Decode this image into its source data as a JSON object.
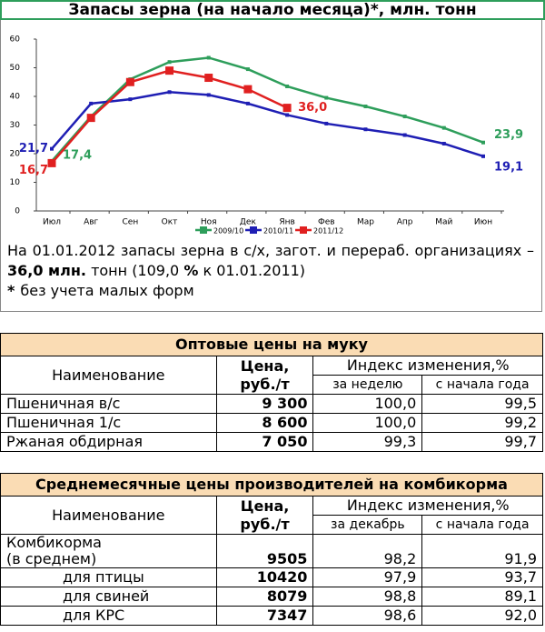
{
  "chart_data": {
    "type": "line",
    "title": "Запасы зерна (на начало месяца)*, млн. тонн",
    "categories": [
      "Июл",
      "Авг",
      "Сен",
      "Окт",
      "Ноя",
      "Дек",
      "Янв",
      "Фев",
      "Мар",
      "Апр",
      "Май",
      "Июн"
    ],
    "ylim": [
      0,
      60
    ],
    "yticks": [
      0,
      10,
      20,
      30,
      40,
      50,
      60
    ],
    "series": [
      {
        "name": "2009/10",
        "color": "#2e9e5b",
        "values": [
          17.4,
          33,
          46,
          52,
          53.5,
          49.5,
          43.5,
          39.5,
          36.5,
          33,
          29,
          23.9
        ],
        "value_labels": [
          "17,4",
          null,
          null,
          null,
          null,
          null,
          null,
          null,
          null,
          null,
          null,
          "23,9"
        ]
      },
      {
        "name": "2010/11",
        "color": "#1f1fb4",
        "values": [
          21.7,
          37.5,
          39,
          41.5,
          40.5,
          37.5,
          33.5,
          30.5,
          28.5,
          26.5,
          23.5,
          19.1
        ],
        "value_labels": [
          "21,7",
          null,
          null,
          null,
          null,
          null,
          null,
          null,
          null,
          null,
          null,
          "19,1"
        ]
      },
      {
        "name": "2011/12",
        "color": "#e02020",
        "values": [
          16.7,
          32.5,
          45,
          49,
          46.5,
          42.5,
          36.0,
          null,
          null,
          null,
          null,
          null
        ],
        "value_labels": [
          "16,7",
          null,
          null,
          null,
          null,
          null,
          "36,0",
          null,
          null,
          null,
          null,
          null
        ]
      }
    ]
  },
  "note": {
    "parts": [
      {
        "text": "На 01.01.2012 запасы зерна в с/х, загот. и перераб. организациях – ",
        "bold": false
      },
      {
        "text": "36,0 млн.",
        "bold": true
      },
      {
        "text": " тонн (109,0 ",
        "bold": false
      },
      {
        "text": "%",
        "bold": true
      },
      {
        "text": " к 01.01.2011)",
        "bold": false
      }
    ],
    "star": "*",
    "footnote": "без учета малых форм"
  },
  "tables": [
    {
      "title": "Оптовые цены на муку",
      "name_header": "Наименование",
      "price_header": "Цена, руб./т",
      "index_header": "Индекс изменения,%",
      "sub_headers": [
        "за неделю",
        "с начала года"
      ],
      "rows": [
        [
          "Пшеничная в/с",
          "9 300",
          "100,0",
          "99,5"
        ],
        [
          "Пшеничная 1/с",
          "8 600",
          "100,0",
          "99,2"
        ],
        [
          "Ржаная обдирная",
          "7 050",
          "99,3",
          "99,7"
        ]
      ]
    },
    {
      "title": "Среднемесячные цены производителей на комбикорма",
      "name_header": "Наименование",
      "price_header": "Цена, руб./т",
      "index_header": "Индекс изменения,%",
      "sub_headers": [
        "за декабрь",
        "с начала года"
      ],
      "rows": [
        [
          "Комбикорма\n(в среднем)",
          "9505",
          "98,2",
          "91,9"
        ],
        [
          "для птицы",
          "10420",
          "97,9",
          "93,7"
        ],
        [
          "для свиней",
          "8079",
          "98,8",
          "89,1"
        ],
        [
          "для КРС",
          "7347",
          "98,6",
          "92,0"
        ]
      ]
    }
  ]
}
